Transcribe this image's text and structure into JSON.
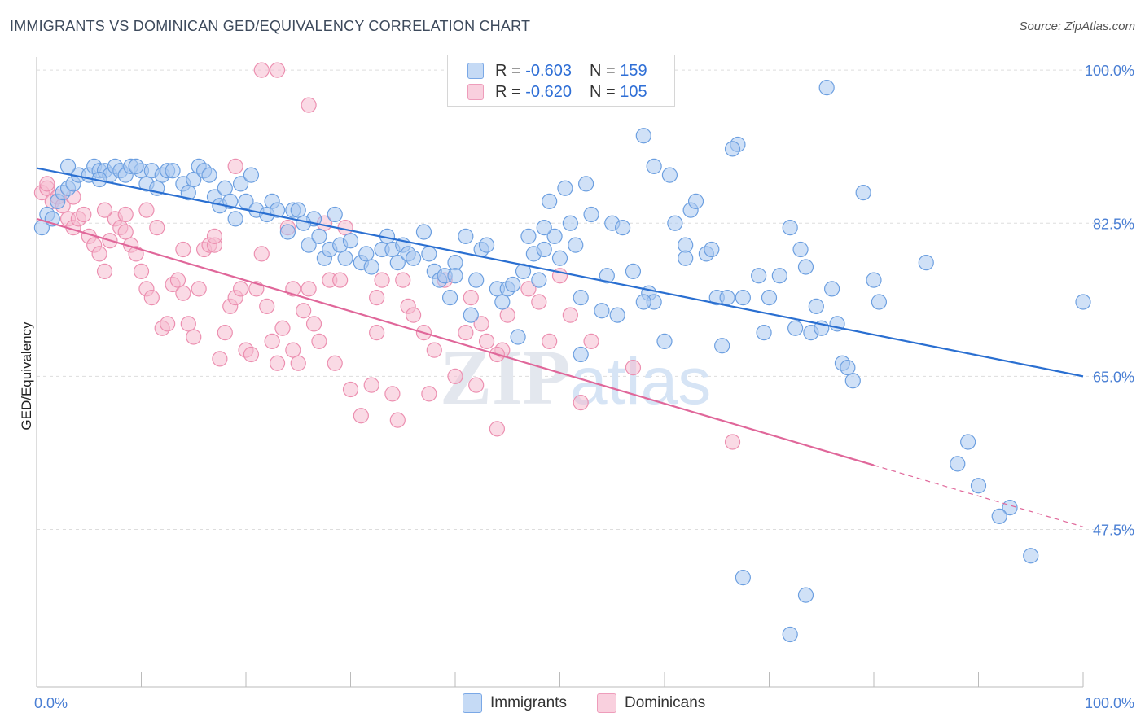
{
  "title": "IMMIGRANTS VS DOMINICAN GED/EQUIVALENCY CORRELATION CHART",
  "source": "Source: ZipAtlas.com",
  "watermark": {
    "zip": "ZIP",
    "atlas": "atlas"
  },
  "colors": {
    "blue_fill": "#a9c8f0",
    "blue_stroke": "#6c9fe0",
    "blue_line": "#2a6fd1",
    "pink_fill": "#f6bcd0",
    "pink_stroke": "#ec8fb0",
    "pink_line": "#e0679a",
    "grid": "#dddddd",
    "axis_label": "#4a7fd4"
  },
  "legend": {
    "rows": [
      {
        "r_label": "R = ",
        "r_value": "-0.603",
        "n_label": "N = ",
        "n_value": "159"
      },
      {
        "r_label": "R = ",
        "r_value": "-0.620",
        "n_label": "N = ",
        "n_value": "105"
      }
    ]
  },
  "bottom_legend": {
    "immigrants": "Immigrants",
    "dominicans": "Dominicans"
  },
  "chart_data": {
    "type": "scatter",
    "title": "IMMIGRANTS VS DOMINICAN GED/EQUIVALENCY CORRELATION CHART",
    "xlabel": "",
    "ylabel": "GED/Equivalency",
    "xlim": [
      0,
      100
    ],
    "ylim": [
      29.5,
      101.5
    ],
    "x_tick_labels": [
      {
        "value": 0,
        "label": "0.0%"
      },
      {
        "value": 100,
        "label": "100.0%"
      }
    ],
    "y_tick_labels": [
      {
        "value": 100,
        "label": "100.0%"
      },
      {
        "value": 82.5,
        "label": "82.5%"
      },
      {
        "value": 65,
        "label": "65.0%"
      },
      {
        "value": 47.5,
        "label": "47.5%"
      }
    ],
    "series": [
      {
        "name": "Immigrants",
        "trend": {
          "x": [
            0,
            100
          ],
          "y": [
            88.8,
            65.0
          ],
          "dashed_from": null
        },
        "points": [
          [
            0.5,
            82
          ],
          [
            1,
            83.5
          ],
          [
            2,
            85
          ],
          [
            2.5,
            86
          ],
          [
            3,
            86.5
          ],
          [
            3.5,
            87
          ],
          [
            4,
            88
          ],
          [
            5,
            88
          ],
          [
            5.5,
            89
          ],
          [
            6,
            88.5
          ],
          [
            6.5,
            88.5
          ],
          [
            7,
            88
          ],
          [
            7.5,
            89
          ],
          [
            8,
            88.5
          ],
          [
            8.5,
            88
          ],
          [
            9,
            89
          ],
          [
            10,
            88.5
          ],
          [
            10.5,
            87
          ],
          [
            11,
            88.5
          ],
          [
            12,
            88
          ],
          [
            12.5,
            88.5
          ],
          [
            13,
            88.5
          ],
          [
            14,
            87
          ],
          [
            14.5,
            86
          ],
          [
            15,
            87.5
          ],
          [
            15.5,
            89
          ],
          [
            16,
            88.5
          ],
          [
            16.5,
            88
          ],
          [
            17,
            85.5
          ],
          [
            17.5,
            84.5
          ],
          [
            18,
            86.5
          ],
          [
            18.5,
            85
          ],
          [
            19,
            83
          ],
          [
            19.5,
            87
          ],
          [
            20,
            85
          ],
          [
            21,
            84
          ],
          [
            22,
            83.5
          ],
          [
            22.5,
            85
          ],
          [
            23,
            84
          ],
          [
            24,
            81.5
          ],
          [
            24.5,
            84
          ],
          [
            25,
            84
          ],
          [
            26,
            80
          ],
          [
            26.5,
            83
          ],
          [
            27,
            81
          ],
          [
            27.5,
            78.5
          ],
          [
            28,
            79.5
          ],
          [
            28.5,
            83.5
          ],
          [
            29,
            80
          ],
          [
            29.5,
            78.5
          ],
          [
            30,
            80.5
          ],
          [
            31,
            78
          ],
          [
            31.5,
            79
          ],
          [
            32,
            77.5
          ],
          [
            33,
            79.5
          ],
          [
            33.5,
            81
          ],
          [
            34,
            79.5
          ],
          [
            34.5,
            78
          ],
          [
            35,
            80
          ],
          [
            35.5,
            79
          ],
          [
            36,
            78.5
          ],
          [
            37,
            81.5
          ],
          [
            37.5,
            79
          ],
          [
            38,
            77
          ],
          [
            38.5,
            76
          ],
          [
            39,
            76.5
          ],
          [
            39.5,
            74
          ],
          [
            40,
            78
          ],
          [
            41,
            81
          ],
          [
            41.5,
            72
          ],
          [
            42,
            76
          ],
          [
            42.5,
            79.5
          ],
          [
            43,
            80
          ],
          [
            44,
            75
          ],
          [
            44.5,
            73.5
          ],
          [
            45,
            75
          ],
          [
            45.5,
            75.5
          ],
          [
            46,
            69.5
          ],
          [
            46.5,
            77
          ],
          [
            47,
            81
          ],
          [
            47.5,
            79
          ],
          [
            48,
            76
          ],
          [
            48.5,
            79.5
          ],
          [
            49,
            85
          ],
          [
            49.5,
            81
          ],
          [
            50,
            78.5
          ],
          [
            50.5,
            86.5
          ],
          [
            51,
            82.5
          ],
          [
            51.5,
            80
          ],
          [
            52,
            67.5
          ],
          [
            52.5,
            87
          ],
          [
            53,
            83.5
          ],
          [
            54,
            72.5
          ],
          [
            54.5,
            76.5
          ],
          [
            55,
            82.5
          ],
          [
            55.5,
            72
          ],
          [
            56,
            82
          ],
          [
            57,
            77
          ],
          [
            58,
            92.5
          ],
          [
            58.5,
            74.5
          ],
          [
            59,
            73.5
          ],
          [
            60,
            69
          ],
          [
            60.5,
            88
          ],
          [
            61,
            82.5
          ],
          [
            62,
            80
          ],
          [
            62.5,
            84
          ],
          [
            63,
            85
          ],
          [
            64,
            79
          ],
          [
            64.5,
            79.5
          ],
          [
            65,
            74
          ],
          [
            65.5,
            68.5
          ],
          [
            66,
            74
          ],
          [
            67,
            91.5
          ],
          [
            67.5,
            74
          ],
          [
            69,
            76.5
          ],
          [
            69.5,
            70
          ],
          [
            70,
            74
          ],
          [
            71,
            76.5
          ],
          [
            72,
            82
          ],
          [
            72.5,
            70.5
          ],
          [
            73,
            79.5
          ],
          [
            73.5,
            77.5
          ],
          [
            74,
            70
          ],
          [
            74.5,
            73
          ],
          [
            75,
            70.5
          ],
          [
            75.5,
            98
          ],
          [
            76,
            75
          ],
          [
            76.5,
            71
          ],
          [
            77,
            66.5
          ],
          [
            78,
            64.5
          ],
          [
            79,
            86
          ],
          [
            80,
            76
          ],
          [
            85,
            78
          ],
          [
            89,
            57.5
          ],
          [
            90,
            52.5
          ],
          [
            95,
            44.5
          ],
          [
            93,
            50
          ],
          [
            92,
            49
          ],
          [
            73.5,
            40
          ],
          [
            67.5,
            42
          ],
          [
            88,
            55
          ],
          [
            100,
            73.5
          ],
          [
            66.5,
            91
          ],
          [
            59,
            89
          ],
          [
            62,
            78.5
          ],
          [
            80.5,
            73.5
          ],
          [
            77.5,
            66
          ],
          [
            58,
            73.5
          ],
          [
            52,
            74
          ],
          [
            48.5,
            82
          ],
          [
            40,
            76.5
          ],
          [
            25.5,
            82.5
          ],
          [
            11.5,
            86.5
          ],
          [
            3,
            89
          ],
          [
            1.5,
            83
          ],
          [
            6,
            87.5
          ],
          [
            9.5,
            89
          ],
          [
            20.5,
            88
          ],
          [
            72,
            35.5
          ]
        ]
      },
      {
        "name": "Dominicans",
        "trend": {
          "x": [
            0,
            100
          ],
          "y": [
            83.0,
            47.8
          ],
          "dashed_from": 80
        },
        "points": [
          [
            0.5,
            86
          ],
          [
            1,
            86.5
          ],
          [
            1.5,
            85
          ],
          [
            2,
            85.5
          ],
          [
            2.5,
            84.5
          ],
          [
            3,
            83
          ],
          [
            3.5,
            82
          ],
          [
            4,
            83
          ],
          [
            4.5,
            83.5
          ],
          [
            5,
            81
          ],
          [
            5.5,
            80
          ],
          [
            6,
            79
          ],
          [
            6.5,
            77
          ],
          [
            7,
            80.5
          ],
          [
            7.5,
            83
          ],
          [
            8,
            82
          ],
          [
            8.5,
            81.5
          ],
          [
            9,
            80
          ],
          [
            9.5,
            79
          ],
          [
            10,
            77
          ],
          [
            10.5,
            75
          ],
          [
            11,
            74
          ],
          [
            11.5,
            82
          ],
          [
            12,
            70.5
          ],
          [
            12.5,
            71
          ],
          [
            13,
            75.5
          ],
          [
            13.5,
            76
          ],
          [
            14,
            74.5
          ],
          [
            14.5,
            71
          ],
          [
            15,
            69.5
          ],
          [
            15.5,
            75
          ],
          [
            16,
            79.5
          ],
          [
            16.5,
            80
          ],
          [
            17,
            80
          ],
          [
            17.5,
            67
          ],
          [
            18,
            70
          ],
          [
            18.5,
            73
          ],
          [
            19,
            74
          ],
          [
            19.5,
            75
          ],
          [
            20,
            68
          ],
          [
            20.5,
            67.5
          ],
          [
            21,
            75
          ],
          [
            21.5,
            79
          ],
          [
            22,
            73
          ],
          [
            22.5,
            69
          ],
          [
            23,
            66.5
          ],
          [
            23.5,
            70.5
          ],
          [
            24,
            82
          ],
          [
            24.5,
            68
          ],
          [
            25,
            66.5
          ],
          [
            25.5,
            72.5
          ],
          [
            26,
            75
          ],
          [
            26.5,
            71
          ],
          [
            27,
            69
          ],
          [
            28,
            76
          ],
          [
            28.5,
            66.5
          ],
          [
            29,
            76
          ],
          [
            29.5,
            82
          ],
          [
            30,
            63.5
          ],
          [
            31,
            60.5
          ],
          [
            32,
            64
          ],
          [
            32.5,
            74
          ],
          [
            33,
            76
          ],
          [
            34,
            63
          ],
          [
            34.5,
            60
          ],
          [
            35,
            76
          ],
          [
            35.5,
            73
          ],
          [
            36,
            72
          ],
          [
            37,
            70
          ],
          [
            37.5,
            63
          ],
          [
            38,
            68
          ],
          [
            39,
            76
          ],
          [
            40,
            65
          ],
          [
            41,
            70
          ],
          [
            41.5,
            74
          ],
          [
            42,
            64
          ],
          [
            42.5,
            71
          ],
          [
            43,
            69
          ],
          [
            44,
            59
          ],
          [
            44.5,
            68
          ],
          [
            45,
            72
          ],
          [
            47,
            75
          ],
          [
            48,
            73.5
          ],
          [
            49,
            69
          ],
          [
            50,
            76.5
          ],
          [
            51,
            72
          ],
          [
            52,
            62
          ],
          [
            53,
            69
          ],
          [
            57,
            66
          ],
          [
            66.5,
            57.5
          ],
          [
            23,
            100
          ],
          [
            21.5,
            100
          ],
          [
            26,
            96
          ],
          [
            19,
            89
          ],
          [
            1,
            87
          ],
          [
            3.5,
            85.5
          ],
          [
            6.5,
            84
          ],
          [
            8.5,
            83.5
          ],
          [
            10.5,
            84
          ],
          [
            14,
            79.5
          ],
          [
            17,
            81
          ],
          [
            24.5,
            75
          ],
          [
            27.5,
            82.5
          ],
          [
            32.5,
            70
          ],
          [
            44,
            67.5
          ]
        ]
      }
    ]
  }
}
